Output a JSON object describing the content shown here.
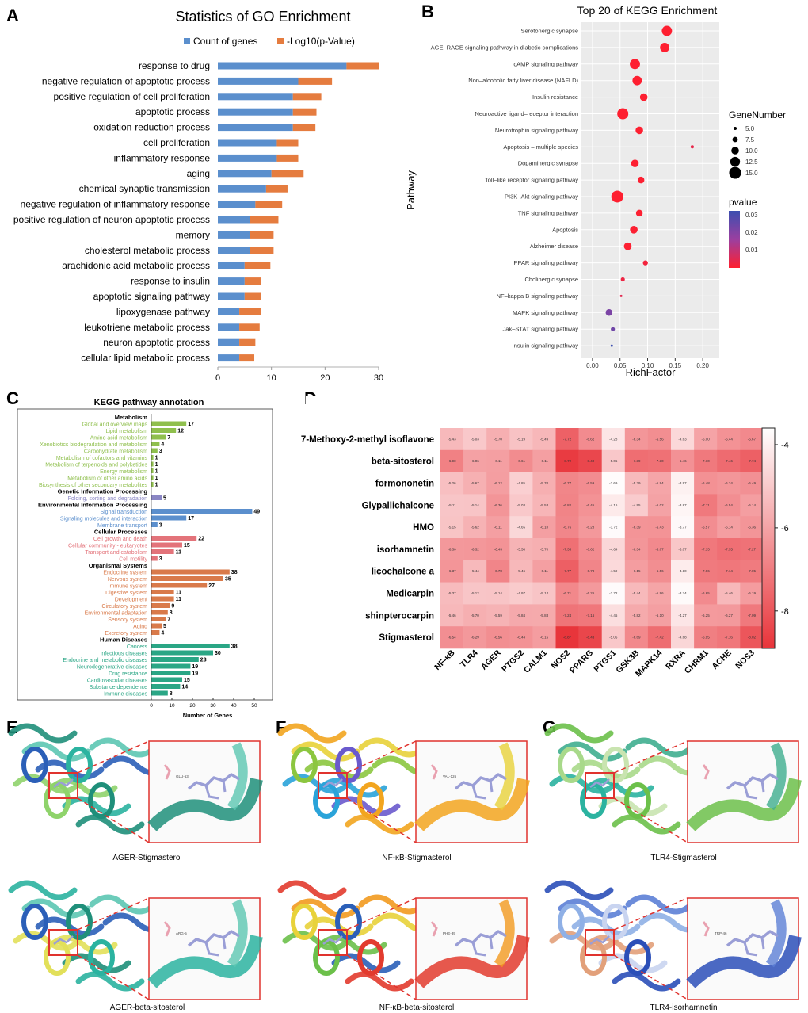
{
  "panels": {
    "A": {
      "letter": "A",
      "title": "Statistics of GO Enrichment",
      "legend": [
        "Count of genes",
        "-Log10(p-Value)"
      ],
      "colors": {
        "count": "#5b8fcd",
        "log": "#e57c3f"
      },
      "categories": [
        "response to drug",
        "negative regulation of apoptotic process",
        "positive regulation of cell proliferation",
        "apoptotic process",
        "oxidation-reduction process",
        "cell proliferation",
        "inflammatory response",
        "aging",
        "chemical synaptic transmission",
        "negative regulation of inflammatory response",
        "positive regulation of neuron apoptotic process",
        "memory",
        "cholesterol metabolic process",
        "arachidonic acid metabolic process",
        "response to insulin",
        "apoptotic signaling pathway",
        "lipoxygenase pathway",
        "leukotriene metabolic process",
        "neuron apoptotic process",
        "cellular lipid metabolic process"
      ],
      "count": [
        24,
        15,
        14,
        14,
        14,
        11,
        11,
        10,
        9,
        7,
        6,
        6,
        6,
        5,
        5,
        5,
        4,
        4,
        4,
        4
      ],
      "log": [
        6,
        6.3,
        5.3,
        4.4,
        4.2,
        4,
        4,
        6,
        4,
        5,
        5.3,
        4.4,
        4.4,
        4.8,
        3,
        3,
        4,
        3.8,
        3,
        2.8
      ],
      "xticks": [
        "0",
        "10",
        "20",
        "30"
      ],
      "xlim": [
        0,
        30
      ]
    },
    "B": {
      "letter": "B",
      "title": "Top 20 of KEGG Enrichment",
      "xlabel": "RichFactor",
      "ylabel": "Pathway",
      "xticks": [
        "0.00",
        "0.05",
        "0.10",
        "0.15",
        "0.20"
      ],
      "xlim": [
        -0.02,
        0.23
      ],
      "pathways": [
        "Serotonergic synapse",
        "AGE–RAGE signaling pathway in diabetic complications",
        "cAMP signaling pathway",
        "Non–alcoholic fatty liver disease (NAFLD)",
        "Insulin resistance",
        "Neuroactive ligand–receptor interaction",
        "Neurotrophin signaling pathway",
        "Apoptosis – multiple species",
        "Dopaminergic synapse",
        "Toll–like receptor signaling pathway",
        "PI3K–Akt signaling pathway",
        "TNF signaling pathway",
        "Apoptosis",
        "Alzheimer disease",
        "PPAR signaling pathway",
        "Cholinergic synapse",
        "NF–kappa B signaling pathway",
        "MAPK signaling pathway",
        "Jak–STAT signaling pathway",
        "Insulin signaling pathway"
      ],
      "richfactor": [
        0.135,
        0.131,
        0.077,
        0.081,
        0.093,
        0.055,
        0.085,
        0.181,
        0.077,
        0.088,
        0.045,
        0.085,
        0.075,
        0.064,
        0.096,
        0.055,
        0.052,
        0.03,
        0.037,
        0.035
      ],
      "gene_number": [
        13,
        12,
        13,
        12,
        10,
        14,
        10,
        5,
        10,
        9,
        15,
        9,
        10,
        10,
        7,
        6,
        4,
        9,
        6,
        4
      ],
      "pvalue": [
        0.0001,
        0.0001,
        0.0002,
        0.0002,
        0.0003,
        0.0001,
        0.0003,
        0.004,
        0.0004,
        0.0005,
        0.0001,
        0.0005,
        0.0005,
        0.0004,
        0.002,
        0.003,
        0.005,
        0.022,
        0.024,
        0.033
      ],
      "legend_size_title": "GeneNumber",
      "legend_sizes": [
        "5.0",
        "7.5",
        "10.0",
        "12.5",
        "15.0"
      ],
      "legend_color_title": "pvalue",
      "legend_color_ticks": [
        "0.03",
        "0.02",
        "0.01"
      ]
    },
    "C": {
      "letter": "C",
      "title": "KEGG pathway annotation",
      "xlabel": "Number of Genes",
      "xticks": [
        "0",
        "10",
        "20",
        "30",
        "40",
        "50"
      ],
      "groups": [
        {
          "name": "Metabolism",
          "color": "#8fbf4d",
          "items": [
            [
              "Global and overview maps",
              17
            ],
            [
              "Lipid metabolism",
              12
            ],
            [
              "Amino acid metabolism",
              7
            ],
            [
              "Xenobiotics biodegradation and metabolism",
              4
            ],
            [
              "Carbohydrate metabolism",
              3
            ],
            [
              "Metabolism of cofactors and vitamins",
              1
            ],
            [
              "Metabolism of terpenoids and polyketides",
              1
            ],
            [
              "Energy metabolism",
              1
            ],
            [
              "Metabolism of other amino acids",
              1
            ],
            [
              "Biosynthesis of other secondary metabolites",
              1
            ]
          ]
        },
        {
          "name": "Genetic Information Processing",
          "color": "#8a86c4",
          "items": [
            [
              "Folding, sorting and degradation",
              5
            ]
          ]
        },
        {
          "name": "Environmental Information Processing",
          "color": "#5b8fcd",
          "items": [
            [
              "Signal transduction",
              49
            ],
            [
              "Signaling molecules and interaction",
              17
            ],
            [
              "Membrane transport",
              3
            ]
          ]
        },
        {
          "name": "Cellular Processes",
          "color": "#e3737a",
          "items": [
            [
              "Cell growth and death",
              22
            ],
            [
              "Cellular community - eukaryotes",
              15
            ],
            [
              "Transport and catabolism",
              11
            ],
            [
              "Cell motility",
              3
            ]
          ]
        },
        {
          "name": "Organismal Systems",
          "color": "#d97a4a",
          "items": [
            [
              "Endocrine system",
              38
            ],
            [
              "Nervous system",
              35
            ],
            [
              "Immune system",
              27
            ],
            [
              "Digestive system",
              11
            ],
            [
              "Development",
              11
            ],
            [
              "Circulatory system",
              9
            ],
            [
              "Environmental adaptation",
              8
            ],
            [
              "Sensory system",
              7
            ],
            [
              "Aging",
              5
            ],
            [
              "Excretory system",
              4
            ]
          ]
        },
        {
          "name": "Human Diseases",
          "color": "#2aa685",
          "items": [
            [
              "Cancers",
              38
            ],
            [
              "Infectious diseases",
              30
            ],
            [
              "Endocrine and metabolic diseases",
              23
            ],
            [
              "Neurodegenerative diseases",
              19
            ],
            [
              "Drug resistance",
              19
            ],
            [
              "Cardiovascular diseases",
              15
            ],
            [
              "Substance dependence",
              14
            ],
            [
              "Immune diseases",
              8
            ]
          ]
        }
      ]
    },
    "D": {
      "letter": "D",
      "rows": [
        "7-Methoxy-2-methyl isoflavone",
        "beta-sitosterol",
        "formononetin",
        "Glypallichalcone",
        "HMO",
        "isorhamnetin",
        "licochalcone a",
        "Medicarpin",
        "shinpterocarpin",
        "Stigmasterol"
      ],
      "cols": [
        "NF-κB",
        "TLR4",
        "AGER",
        "PTGS2",
        "CALM1",
        "NOS2",
        "PPARG",
        "PTGS1",
        "GSK3B",
        "MAPK14",
        "RXRA",
        "CHRM1",
        "ACHE",
        "NOS3"
      ],
      "values": [
        [
          -5.43,
          -5.03,
          -5.7,
          -5.19,
          -5.49,
          -7.72,
          -6.62,
          -4.28,
          -6.34,
          -6.56,
          -4.63,
          -6.0,
          -6.44,
          -6.67
        ],
        [
          -6.9,
          -6.06,
          -6.11,
          -6.61,
          -6.11,
          -8.72,
          -8.4,
          -5.05,
          -7.39,
          -7.3,
          -6.46,
          -7.1,
          -7.46,
          -7.74
        ],
        [
          -5.26,
          -5.67,
          -6.12,
          -4.85,
          -5.7,
          -6.77,
          -6.59,
          -3.69,
          -5.39,
          -5.94,
          -3.97,
          -6.48,
          -6.34,
          -6.49
        ],
        [
          -5.11,
          -5.14,
          -6.36,
          -5.03,
          -5.53,
          -6.82,
          -6.45,
          -4.16,
          -4.95,
          -6.02,
          -3.87,
          -7.11,
          -6.54,
          -6.14
        ],
        [
          -5.15,
          -5.62,
          -6.11,
          -4.65,
          -6.1,
          -6.76,
          -6.28,
          -3.72,
          -6.39,
          -6.43,
          -3.77,
          -6.57,
          -6.14,
          -6.36
        ],
        [
          -6.3,
          -6.32,
          -6.43,
          -5.58,
          -5.7,
          -7.33,
          -6.62,
          -4.64,
          -6.34,
          -6.67,
          -5.07,
          -7.13,
          -7.35,
          -7.27
        ],
        [
          -6.37,
          -5.44,
          -6.78,
          -5.46,
          -6.11,
          -7.77,
          -6.78,
          -4.59,
          -6.15,
          -6.56,
          -4.1,
          -7.06,
          -7.14,
          -7.05
        ],
        [
          -5.37,
          -5.12,
          -5.14,
          -4.97,
          -5.14,
          -6.71,
          -6.26,
          -3.72,
          -5.44,
          -5.96,
          -3.74,
          -6.65,
          -5.46,
          -6.19
        ],
        [
          -5.46,
          -5.7,
          -5.59,
          -5.84,
          -5.83,
          -7.24,
          -7.16,
          -4.45,
          -5.82,
          -6.1,
          -4.27,
          -6.25,
          -6.27,
          -7.09
        ],
        [
          -6.54,
          -6.29,
          -6.56,
          -6.44,
          -6.15,
          -8.87,
          -8.43,
          -5.05,
          -6.69,
          -7.42,
          -4.68,
          -6.95,
          -7.16,
          -8.02
        ]
      ],
      "vmin": -8.9,
      "vmax": -3.6,
      "colorbar_ticks": [
        "-4",
        "-6",
        "-8"
      ]
    },
    "docking": [
      {
        "letter": "E",
        "label": "AGER-Stigmasterol",
        "scheme": "teal",
        "ligand": "GLU-63"
      },
      {
        "letter": "F",
        "label": "NF-κB-Stigmasterol",
        "scheme": "rainbow",
        "ligand": "VAL-126"
      },
      {
        "letter": "G",
        "label": "TLR4-Stigmasterol",
        "scheme": "green",
        "ligand": ""
      },
      {
        "letter": "",
        "label": "AGER-beta-sitosterol",
        "scheme": "teal2",
        "ligand": "ARG-5"
      },
      {
        "letter": "",
        "label": "NF-κB-beta-sitosterol",
        "scheme": "rainbow2",
        "ligand": "PHE-39"
      },
      {
        "letter": "",
        "label": "TLR4-isorhamnetin",
        "scheme": "blue",
        "ligand": "TRP-46"
      }
    ]
  }
}
